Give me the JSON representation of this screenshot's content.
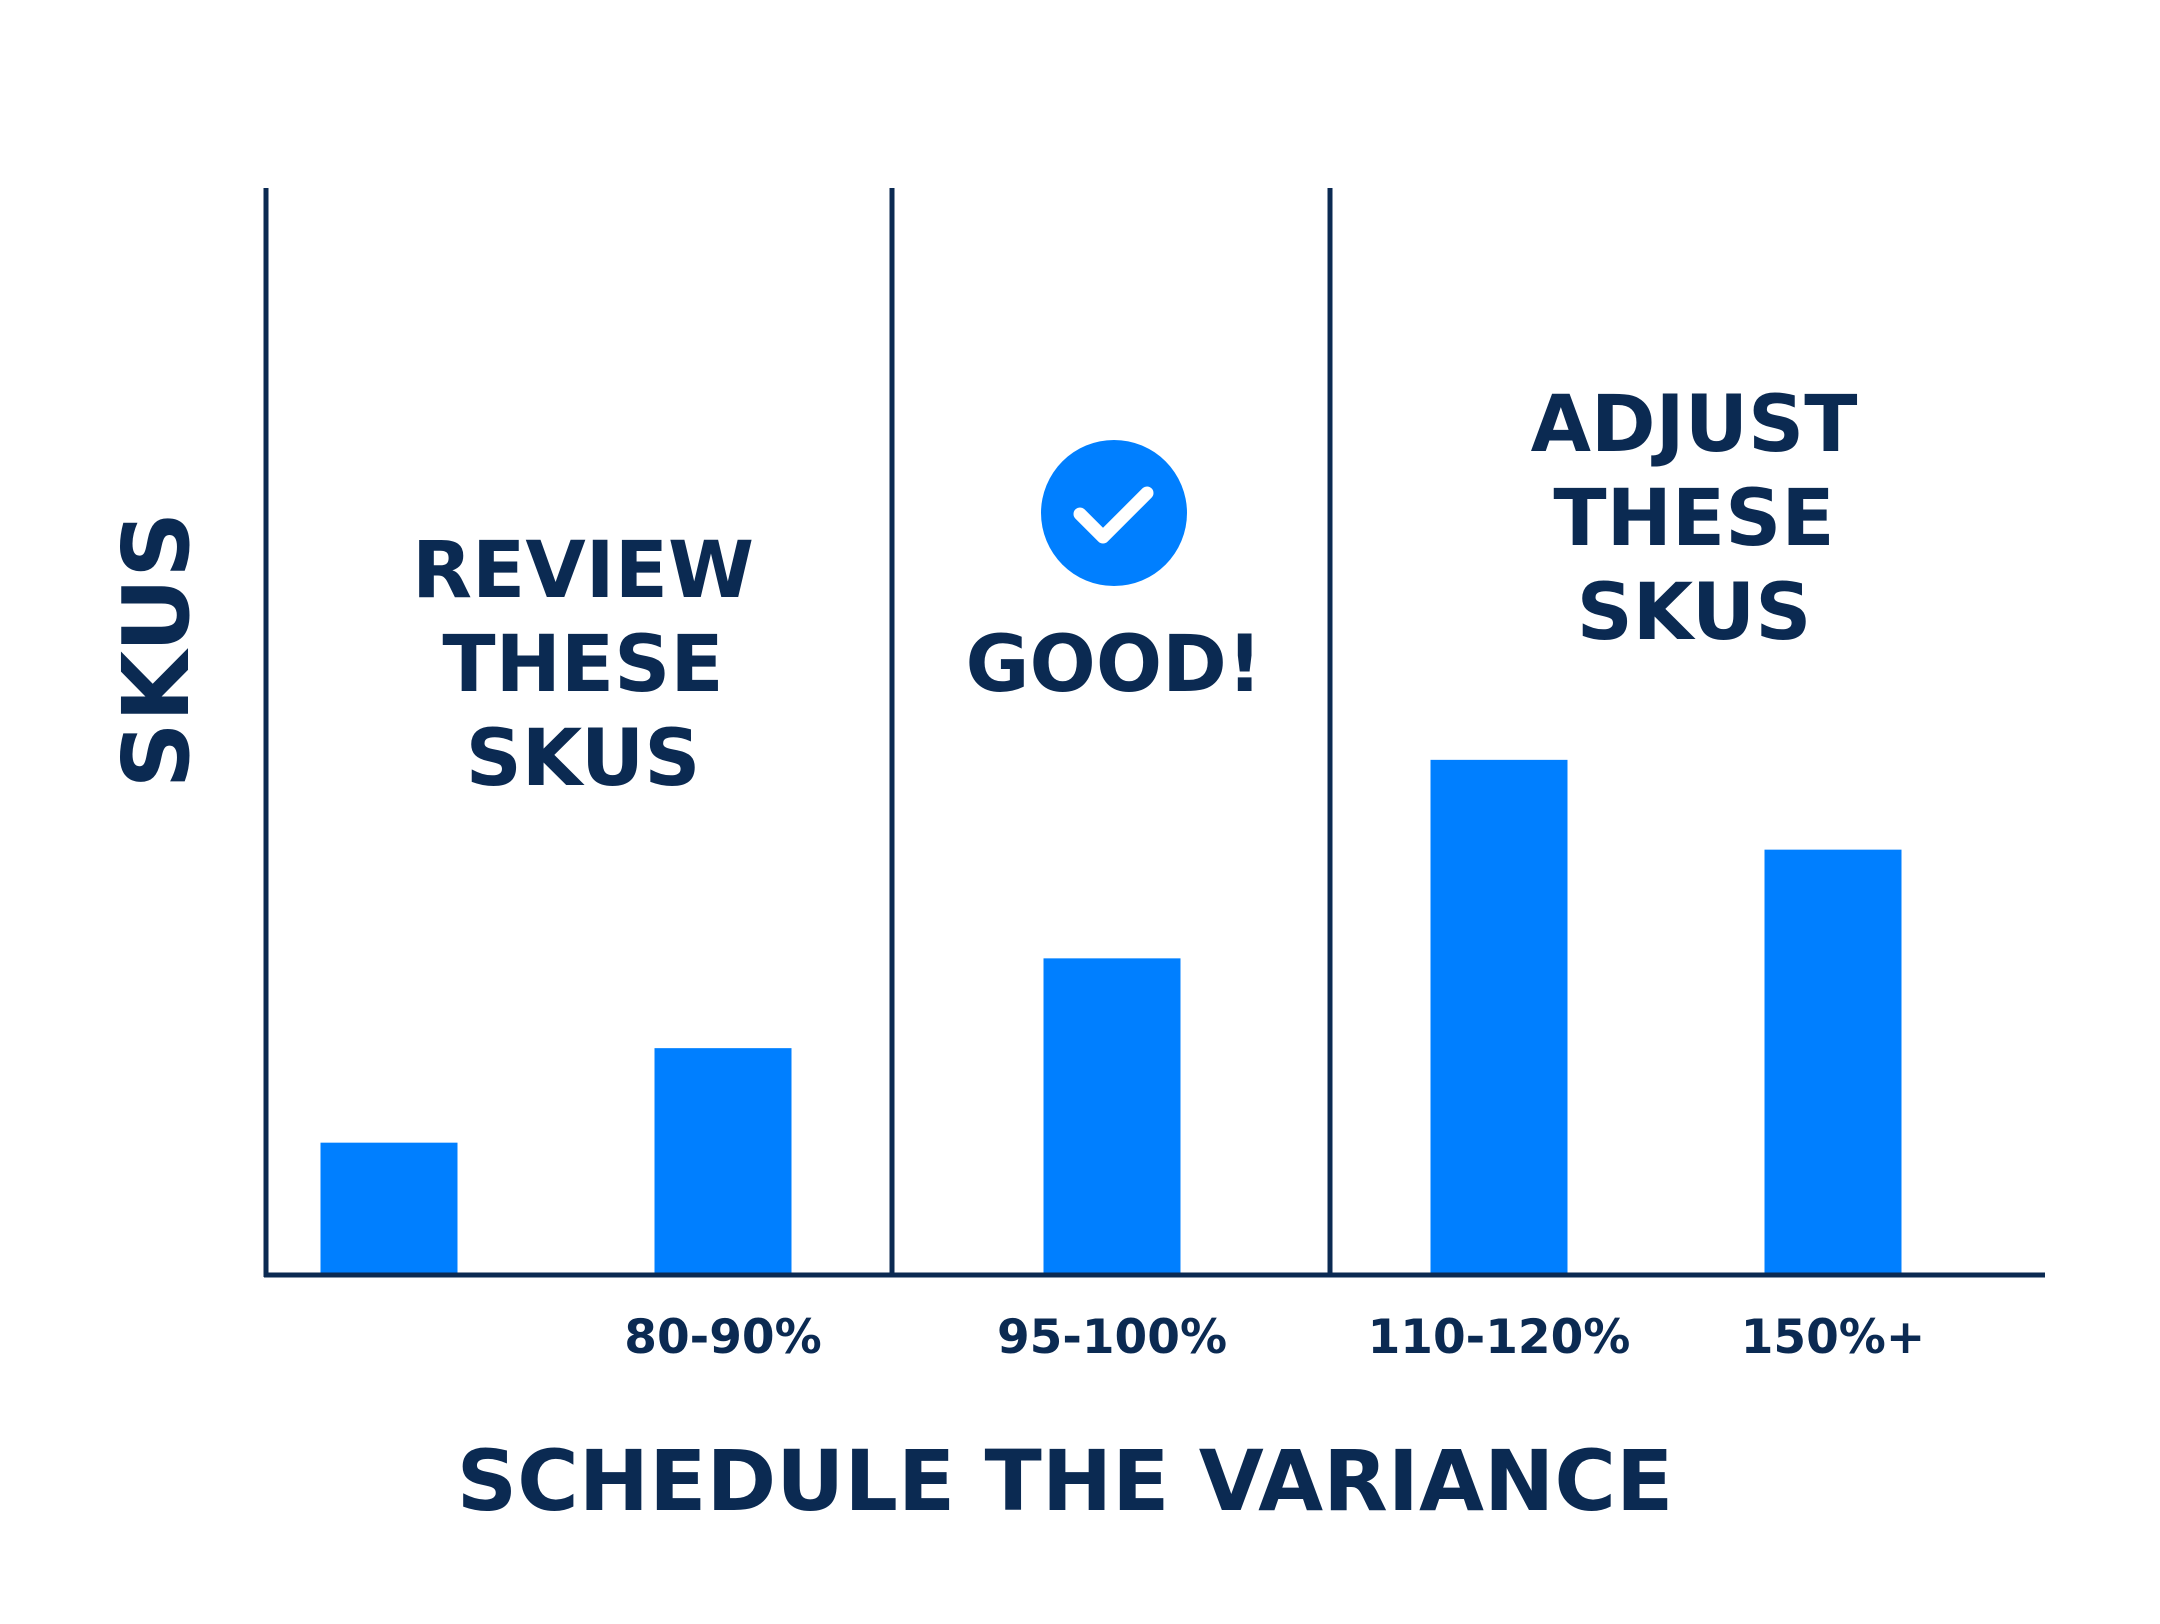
{
  "colors": {
    "ink": "#0b2a52",
    "bar": "#007fff",
    "background": "#ffffff",
    "check_mark": "#ffffff"
  },
  "chart_data": {
    "type": "bar",
    "title": "",
    "xlabel": "SCHEDULE THE VARIANCE",
    "ylabel": "SKUS",
    "categories": [
      "",
      "80-90%",
      "95-100%",
      "110-120%",
      "150%+"
    ],
    "values": [
      14,
      24,
      33.5,
      54.5,
      45
    ],
    "ylim": [
      0,
      115
    ],
    "grid": false,
    "y_ticks_visible": false,
    "legend": "none",
    "zones": [
      {
        "id": "review",
        "label_lines": [
          "REVIEW",
          "THESE",
          "SKUS"
        ],
        "categories": [
          "",
          "80-90%"
        ]
      },
      {
        "id": "good",
        "label_lines": [
          "GOOD!"
        ],
        "icon": "check-circle-icon",
        "categories": [
          "95-100%"
        ]
      },
      {
        "id": "adjust",
        "label_lines": [
          "ADJUST",
          "THESE",
          "SKUS"
        ],
        "categories": [
          "110-120%",
          "150%+"
        ]
      }
    ]
  }
}
